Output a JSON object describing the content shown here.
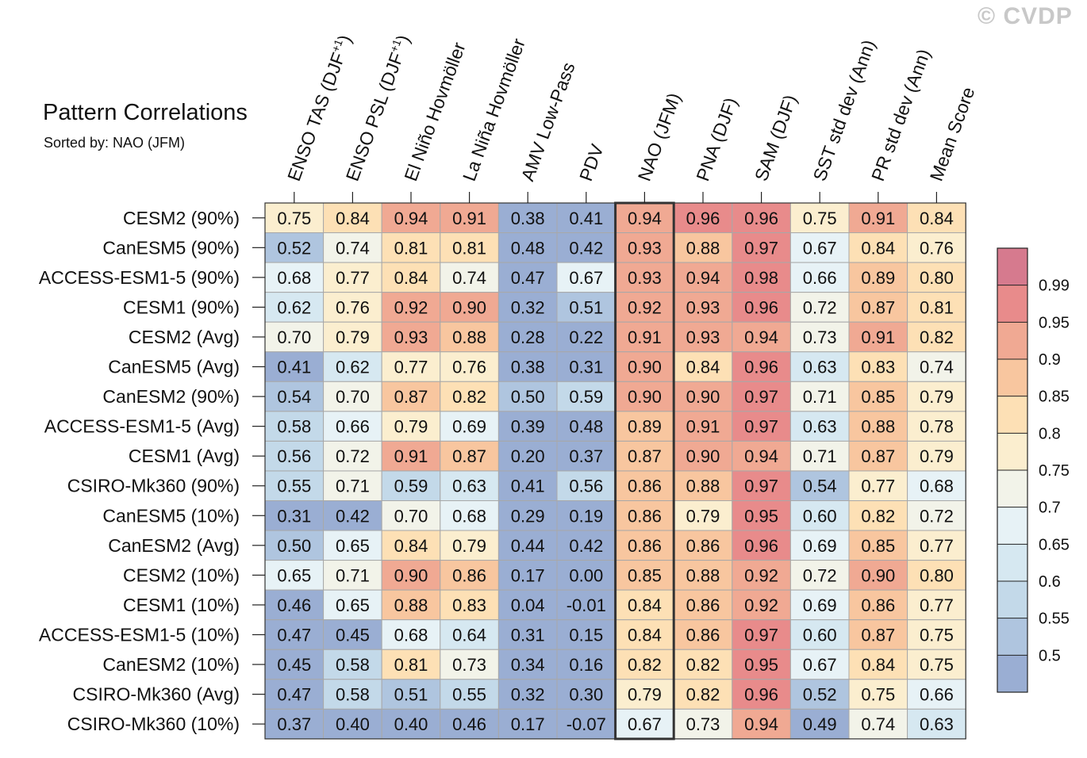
{
  "watermark": "© CVDP",
  "chart_data": {
    "type": "heatmap",
    "title": "Pattern Correlations",
    "subtitle": "Sorted by: NAO (JFM)",
    "columns": [
      "ENSO TAS (DJF+1)",
      "ENSO PSL (DJF+1)",
      "El Niño Hovmöller",
      "La Niña Hovmöller",
      "AMV Low-Pass",
      "PDV",
      "NAO (JFM)",
      "PNA (DJF)",
      "SAM (DJF)",
      "SST std dev (Ann)",
      "PR std dev (Ann)",
      "Mean Score"
    ],
    "column_labels": [
      {
        "main": "ENSO TAS (DJF",
        "sup": "+1",
        "tail": ")"
      },
      {
        "main": "ENSO PSL (DJF",
        "sup": "+1",
        "tail": ")"
      },
      {
        "main": "El Niño Hovmöller",
        "sup": "",
        "tail": ""
      },
      {
        "main": "La Niña Hovmöller",
        "sup": "",
        "tail": ""
      },
      {
        "main": "AMV Low-Pass",
        "sup": "",
        "tail": ""
      },
      {
        "main": "PDV",
        "sup": "",
        "tail": ""
      },
      {
        "main": "NAO (JFM)",
        "sup": "",
        "tail": ""
      },
      {
        "main": "PNA (DJF)",
        "sup": "",
        "tail": ""
      },
      {
        "main": "SAM (DJF)",
        "sup": "",
        "tail": ""
      },
      {
        "main": "SST std dev (Ann)",
        "sup": "",
        "tail": ""
      },
      {
        "main": "PR std dev (Ann)",
        "sup": "",
        "tail": ""
      },
      {
        "main": "Mean Score",
        "sup": "",
        "tail": ""
      }
    ],
    "highlighted_column": "NAO (JFM)",
    "rows": [
      "CESM2 (90%)",
      "CanESM5 (90%)",
      "ACCESS-ESM1-5 (90%)",
      "CESM1 (90%)",
      "CESM2 (Avg)",
      "CanESM5 (Avg)",
      "CanESM2 (90%)",
      "ACCESS-ESM1-5 (Avg)",
      "CESM1 (Avg)",
      "CSIRO-Mk360 (90%)",
      "CanESM5 (10%)",
      "CanESM2 (Avg)",
      "CESM2 (10%)",
      "CESM1 (10%)",
      "ACCESS-ESM1-5 (10%)",
      "CanESM2 (10%)",
      "CSIRO-Mk360 (Avg)",
      "CSIRO-Mk360 (10%)"
    ],
    "values": [
      [
        "0.75",
        "0.84",
        "0.94",
        "0.91",
        "0.38",
        "0.41",
        "0.94",
        "0.96",
        "0.96",
        "0.75",
        "0.91",
        "0.84"
      ],
      [
        "0.52",
        "0.74",
        "0.81",
        "0.81",
        "0.48",
        "0.42",
        "0.93",
        "0.88",
        "0.97",
        "0.67",
        "0.84",
        "0.76"
      ],
      [
        "0.68",
        "0.77",
        "0.84",
        "0.74",
        "0.47",
        "0.67",
        "0.93",
        "0.94",
        "0.98",
        "0.66",
        "0.89",
        "0.80"
      ],
      [
        "0.62",
        "0.76",
        "0.92",
        "0.90",
        "0.32",
        "0.51",
        "0.92",
        "0.93",
        "0.96",
        "0.72",
        "0.87",
        "0.81"
      ],
      [
        "0.70",
        "0.79",
        "0.93",
        "0.88",
        "0.28",
        "0.22",
        "0.91",
        "0.93",
        "0.94",
        "0.73",
        "0.91",
        "0.82"
      ],
      [
        "0.41",
        "0.62",
        "0.77",
        "0.76",
        "0.38",
        "0.31",
        "0.90",
        "0.84",
        "0.96",
        "0.63",
        "0.83",
        "0.74"
      ],
      [
        "0.54",
        "0.70",
        "0.87",
        "0.82",
        "0.50",
        "0.59",
        "0.90",
        "0.90",
        "0.97",
        "0.71",
        "0.85",
        "0.79"
      ],
      [
        "0.58",
        "0.66",
        "0.79",
        "0.69",
        "0.39",
        "0.48",
        "0.89",
        "0.91",
        "0.97",
        "0.63",
        "0.88",
        "0.78"
      ],
      [
        "0.56",
        "0.72",
        "0.91",
        "0.87",
        "0.20",
        "0.37",
        "0.87",
        "0.90",
        "0.94",
        "0.71",
        "0.87",
        "0.79"
      ],
      [
        "0.55",
        "0.71",
        "0.59",
        "0.63",
        "0.41",
        "0.56",
        "0.86",
        "0.88",
        "0.97",
        "0.54",
        "0.77",
        "0.68"
      ],
      [
        "0.31",
        "0.42",
        "0.70",
        "0.68",
        "0.29",
        "0.19",
        "0.86",
        "0.79",
        "0.95",
        "0.60",
        "0.82",
        "0.72"
      ],
      [
        "0.50",
        "0.65",
        "0.84",
        "0.79",
        "0.44",
        "0.42",
        "0.86",
        "0.86",
        "0.96",
        "0.69",
        "0.85",
        "0.77"
      ],
      [
        "0.65",
        "0.71",
        "0.90",
        "0.86",
        "0.17",
        "0.00",
        "0.85",
        "0.88",
        "0.92",
        "0.72",
        "0.90",
        "0.80"
      ],
      [
        "0.46",
        "0.65",
        "0.88",
        "0.83",
        "0.04",
        "-0.01",
        "0.84",
        "0.86",
        "0.92",
        "0.69",
        "0.86",
        "0.77"
      ],
      [
        "0.47",
        "0.45",
        "0.68",
        "0.64",
        "0.31",
        "0.15",
        "0.84",
        "0.86",
        "0.97",
        "0.60",
        "0.87",
        "0.75"
      ],
      [
        "0.45",
        "0.58",
        "0.81",
        "0.73",
        "0.34",
        "0.16",
        "0.82",
        "0.82",
        "0.95",
        "0.67",
        "0.84",
        "0.75"
      ],
      [
        "0.47",
        "0.58",
        "0.51",
        "0.55",
        "0.32",
        "0.30",
        "0.79",
        "0.82",
        "0.96",
        "0.52",
        "0.75",
        "0.66"
      ],
      [
        "0.37",
        "0.40",
        "0.40",
        "0.46",
        "0.17",
        "-0.07",
        "0.67",
        "0.73",
        "0.94",
        "0.49",
        "0.74",
        "0.63"
      ]
    ],
    "colorbar": {
      "levels": [
        0.5,
        0.55,
        0.6,
        0.65,
        0.7,
        0.75,
        0.8,
        0.85,
        0.9,
        0.95,
        0.99
      ],
      "tick_labels": [
        "0.5",
        "0.55",
        "0.6",
        "0.65",
        "0.7",
        "0.75",
        "0.8",
        "0.85",
        "0.9",
        "0.95",
        "0.99"
      ],
      "colors": [
        "#9aaed3",
        "#afc5df",
        "#c3d9e9",
        "#d6e8f1",
        "#e7f2f6",
        "#f2f3e9",
        "#fbeecf",
        "#fde0b5",
        "#f8c69f",
        "#f0a993",
        "#e88b8b",
        "#d67a8e"
      ],
      "placement": "right"
    }
  }
}
